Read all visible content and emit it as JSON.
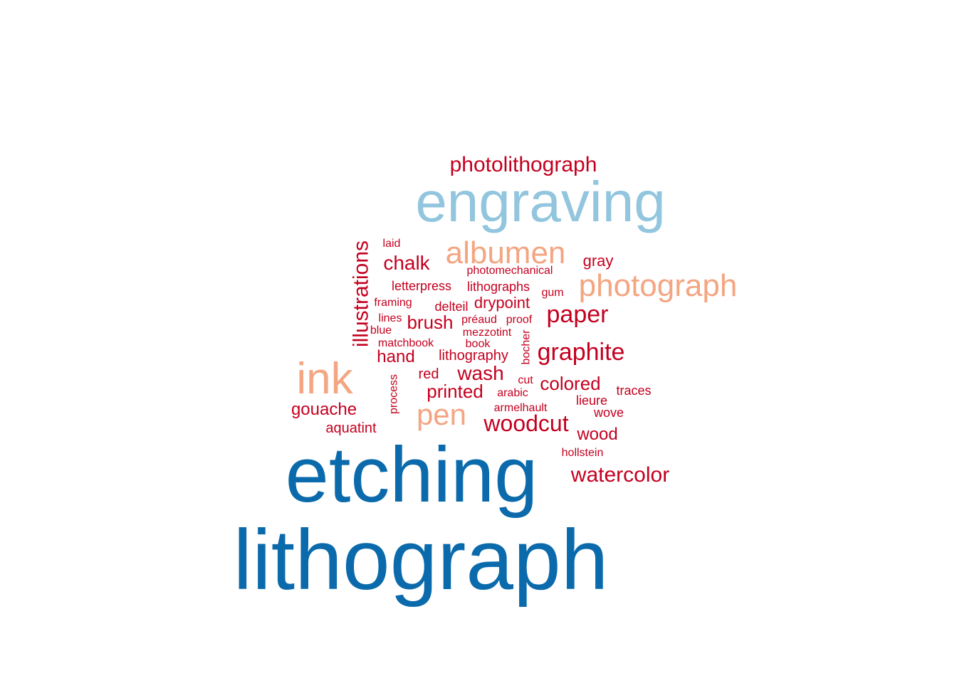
{
  "palette": {
    "dark_blue": "#0a6aab",
    "light_blue": "#92c5de",
    "salmon": "#f4a582",
    "red": "#c4001f"
  },
  "words": [
    {
      "text": "lithograph",
      "color": "dark_blue"
    },
    {
      "text": "etching",
      "color": "dark_blue"
    },
    {
      "text": "engraving",
      "color": "light_blue"
    },
    {
      "text": "photolithograph",
      "color": "red"
    },
    {
      "text": "albumen",
      "color": "salmon"
    },
    {
      "text": "photograph",
      "color": "salmon"
    },
    {
      "text": "ink",
      "color": "salmon"
    },
    {
      "text": "pen",
      "color": "salmon"
    },
    {
      "text": "illustrations",
      "color": "red"
    },
    {
      "text": "laid",
      "color": "red"
    },
    {
      "text": "chalk",
      "color": "red"
    },
    {
      "text": "photomechanical",
      "color": "red"
    },
    {
      "text": "gray",
      "color": "red"
    },
    {
      "text": "letterpress",
      "color": "red"
    },
    {
      "text": "lithographs",
      "color": "red"
    },
    {
      "text": "gum",
      "color": "red"
    },
    {
      "text": "framing",
      "color": "red"
    },
    {
      "text": "delteil",
      "color": "red"
    },
    {
      "text": "drypoint",
      "color": "red"
    },
    {
      "text": "paper",
      "color": "red"
    },
    {
      "text": "lines",
      "color": "red"
    },
    {
      "text": "brush",
      "color": "red"
    },
    {
      "text": "préaud",
      "color": "red"
    },
    {
      "text": "proof",
      "color": "red"
    },
    {
      "text": "blue",
      "color": "red"
    },
    {
      "text": "mezzotint",
      "color": "red"
    },
    {
      "text": "bocher",
      "color": "red"
    },
    {
      "text": "matchbook",
      "color": "red"
    },
    {
      "text": "book",
      "color": "red"
    },
    {
      "text": "graphite",
      "color": "red"
    },
    {
      "text": "hand",
      "color": "red"
    },
    {
      "text": "lithography",
      "color": "red"
    },
    {
      "text": "process",
      "color": "red"
    },
    {
      "text": "red",
      "color": "red"
    },
    {
      "text": "wash",
      "color": "red"
    },
    {
      "text": "cut",
      "color": "red"
    },
    {
      "text": "colored",
      "color": "red"
    },
    {
      "text": "printed",
      "color": "red"
    },
    {
      "text": "arabic",
      "color": "red"
    },
    {
      "text": "traces",
      "color": "red"
    },
    {
      "text": "gouache",
      "color": "red"
    },
    {
      "text": "lieure",
      "color": "red"
    },
    {
      "text": "armelhault",
      "color": "red"
    },
    {
      "text": "wove",
      "color": "red"
    },
    {
      "text": "aquatint",
      "color": "red"
    },
    {
      "text": "woodcut",
      "color": "red"
    },
    {
      "text": "wood",
      "color": "red"
    },
    {
      "text": "hollstein",
      "color": "red"
    },
    {
      "text": "watercolor",
      "color": "red"
    }
  ]
}
